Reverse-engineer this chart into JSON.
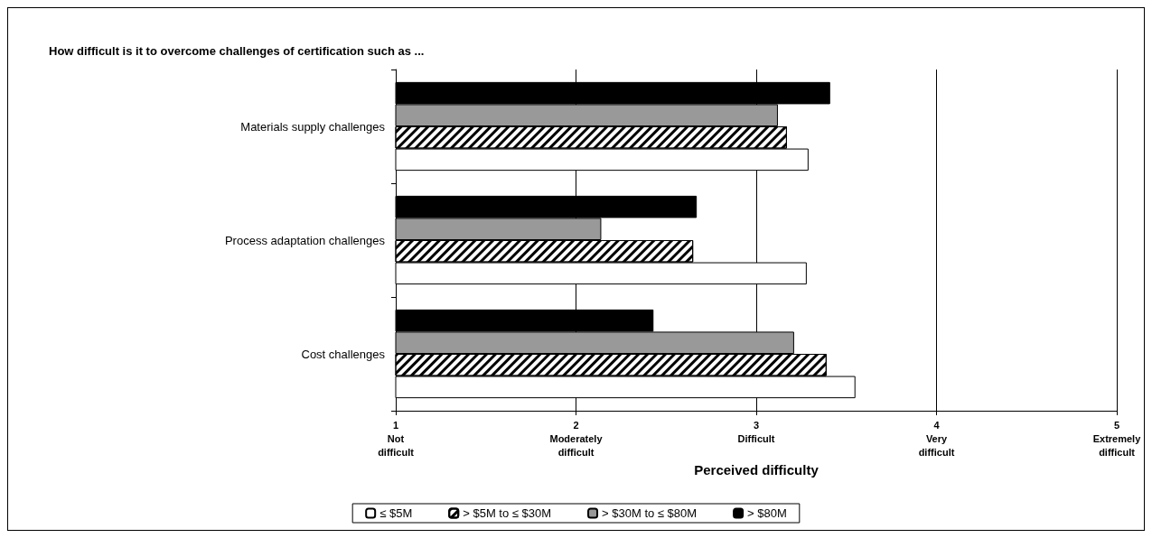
{
  "chart_data": {
    "type": "bar",
    "orientation": "horizontal",
    "title": "How difficult is it to overcome challenges of certification such as ...",
    "xlabel": "Perceived difficulty",
    "categories": [
      "Materials supply challenges",
      "Process adaptation challenges",
      "Cost challenges"
    ],
    "series": [
      {
        "name": "≤ $5M",
        "color": "#ffffff",
        "values": [
          3.29,
          3.28,
          3.55
        ]
      },
      {
        "name": "> $5M to ≤ $30M",
        "color": "#000000",
        "values": [
          3.17,
          2.65,
          3.39
        ]
      },
      {
        "name": "> $30M to ≤ $80M",
        "color": "#999999",
        "values": [
          3.12,
          2.14,
          3.21
        ]
      },
      {
        "name": "> $80M",
        "color": "#000000",
        "values": [
          3.41,
          2.67,
          2.43
        ]
      }
    ],
    "xlim": [
      1,
      5
    ],
    "xticks": [
      {
        "value": 1,
        "label": "1\nNot\ndifficult"
      },
      {
        "value": 2,
        "label": "2\nModerately\ndifficult"
      },
      {
        "value": 3,
        "label": "3\nDifficult"
      },
      {
        "value": 4,
        "label": "4\nVery\ndifficult"
      },
      {
        "value": 5,
        "label": "5\nExtremely\ndifficult"
      }
    ],
    "grid": "x",
    "legend": "bottom"
  }
}
